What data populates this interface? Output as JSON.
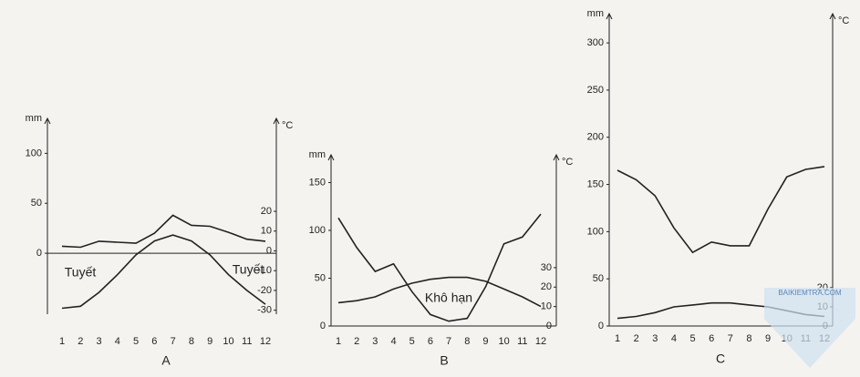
{
  "chart_data": [
    {
      "type": "line",
      "label": "A",
      "y_label": "mm",
      "y2_label": "°C",
      "categories": [
        "1",
        "2",
        "3",
        "4",
        "5",
        "6",
        "7",
        "8",
        "9",
        "10",
        "11",
        "12"
      ],
      "series": [
        {
          "color": "#222222",
          "values": [
            7,
            6,
            12,
            11,
            10,
            20,
            38,
            28,
            27,
            21,
            14,
            12
          ]
        },
        {
          "color": "#222222",
          "axis": "y2",
          "values": [
            -29,
            -28,
            -21,
            -12,
            -2,
            5,
            8,
            5,
            -2,
            -12,
            -20,
            -27
          ]
        }
      ],
      "ylim": [
        -61,
        135
      ],
      "yticks": [
        0,
        50,
        100
      ],
      "y2lim": [
        -32,
        67
      ],
      "y2ticks": [
        -30,
        -20,
        -10,
        0,
        10,
        20
      ],
      "annotations": [
        "Tuyết",
        "Tuyết"
      ]
    },
    {
      "type": "line",
      "label": "B",
      "y_label": "mm",
      "y2_label": "°C",
      "categories": [
        "1",
        "2",
        "3",
        "4",
        "5",
        "6",
        "7",
        "8",
        "9",
        "10",
        "11",
        "12"
      ],
      "series": [
        {
          "color": "#222222",
          "values": [
            113,
            82,
            57,
            65,
            36,
            12,
            5,
            8,
            41,
            86,
            93,
            117
          ]
        },
        {
          "color": "#222222",
          "axis": "y2",
          "values": [
            12,
            13,
            15,
            19,
            22,
            24,
            25,
            25,
            23,
            19,
            15,
            10
          ]
        }
      ],
      "ylim": [
        0,
        179
      ],
      "yticks": [
        0,
        50,
        100,
        150
      ],
      "y2lim": [
        0,
        88
      ],
      "y2ticks": [
        0,
        10,
        20,
        30
      ],
      "annotations": [
        "Khô hạn"
      ]
    },
    {
      "type": "line",
      "label": "C",
      "y_label": "mm",
      "y2_label": "°C",
      "categories": [
        "1",
        "2",
        "3",
        "4",
        "5",
        "6",
        "7",
        "8",
        "9",
        "10",
        "11",
        "12"
      ],
      "series": [
        {
          "color": "#222222",
          "values": [
            165,
            155,
            138,
            104,
            78,
            89,
            85,
            85,
            124,
            158,
            166,
            169
          ]
        },
        {
          "color": "#222222",
          "axis": "y2",
          "values": [
            4,
            5,
            7,
            10,
            11,
            12,
            12,
            11,
            10,
            8,
            6,
            5
          ]
        }
      ],
      "ylim": [
        0,
        331
      ],
      "yticks": [
        0,
        50,
        100,
        150,
        200,
        250,
        300
      ],
      "y2lim": [
        0,
        163
      ],
      "y2ticks": [
        0,
        10,
        20
      ],
      "annotations": []
    }
  ],
  "watermark": "BAIKIEMTRA.COM"
}
